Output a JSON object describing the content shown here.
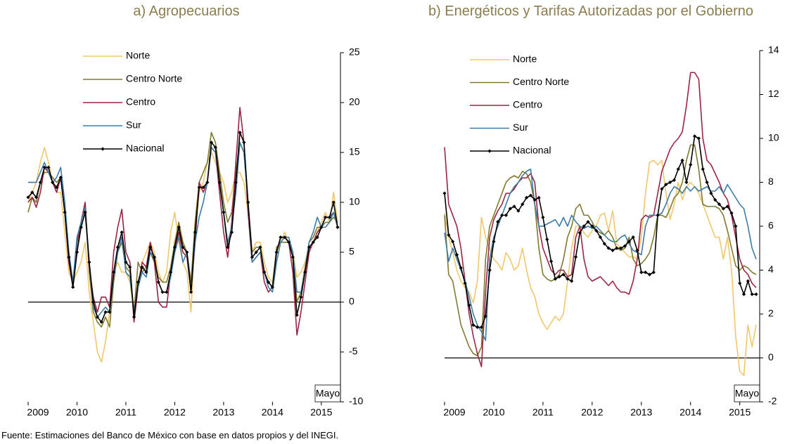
{
  "chart_data": [
    {
      "type": "line",
      "title": "a) Agropecuarios",
      "categories": [
        "2009",
        null,
        null,
        null,
        null,
        null,
        null,
        null,
        null,
        null,
        null,
        null,
        "2010",
        null,
        null,
        null,
        null,
        null,
        null,
        null,
        null,
        null,
        null,
        null,
        "2011",
        null,
        null,
        null,
        null,
        null,
        null,
        null,
        null,
        null,
        null,
        null,
        "2012",
        null,
        null,
        null,
        null,
        null,
        null,
        null,
        null,
        null,
        null,
        null,
        "2013",
        null,
        null,
        null,
        null,
        null,
        null,
        null,
        null,
        null,
        null,
        null,
        "2014",
        null,
        null,
        null,
        null,
        null,
        null,
        null,
        null,
        null,
        null,
        null,
        "2015",
        null,
        null,
        null,
        null
      ],
      "series": [
        {
          "name": "Norte",
          "color": "#f2c76b",
          "values": [
            10,
            11,
            12,
            14,
            15.5,
            14,
            12,
            11,
            11,
            7,
            3,
            2,
            3,
            4,
            6,
            1,
            -2,
            -5,
            -6,
            -4,
            -1,
            3,
            4,
            3,
            3,
            2,
            -1,
            2,
            4,
            5,
            6,
            5,
            3,
            2,
            3,
            7,
            9,
            6,
            4,
            3,
            -1,
            7,
            11,
            12,
            14,
            15,
            14,
            13,
            12,
            10,
            11,
            13,
            13,
            12,
            9,
            5,
            6,
            6,
            4,
            2.5,
            2,
            5,
            6,
            7,
            6,
            5,
            2.5,
            3,
            4,
            5.5,
            6,
            7,
            8,
            9,
            8,
            11,
            8
          ]
        },
        {
          "name": "Centro Norte",
          "color": "#7f7a2e",
          "values": [
            9,
            10.5,
            10,
            12,
            13,
            13,
            12.5,
            12,
            12.5,
            9,
            4,
            1.5,
            5,
            8,
            10,
            3,
            -1,
            -2,
            -2.5,
            -1.5,
            -2.5,
            2,
            5,
            6,
            3.5,
            3,
            -1,
            4,
            3,
            3.5,
            5,
            4,
            2.5,
            2,
            2,
            3.5,
            6,
            8,
            6,
            5,
            2,
            8,
            12,
            13,
            14,
            17,
            16,
            13,
            10,
            8,
            9,
            13,
            16,
            15,
            10,
            5,
            5.5,
            5.5,
            3,
            2,
            1.5,
            5.5,
            6,
            6,
            6,
            5,
            0,
            1,
            3.5,
            6,
            6.5,
            7.5,
            7.5,
            8,
            8,
            8.5,
            8
          ]
        },
        {
          "name": "Centro",
          "color": "#9b2343",
          "values": [
            10,
            10.5,
            9.5,
            11,
            13.5,
            13,
            12,
            11,
            12.5,
            9,
            4,
            1.5,
            6,
            8,
            10,
            3.5,
            0.5,
            -1,
            0.5,
            0.5,
            -0.5,
            5,
            7.5,
            9.3,
            5,
            4,
            -2,
            1.5,
            4,
            3.5,
            6,
            4,
            0,
            -0.5,
            -0.5,
            3,
            5,
            7,
            5,
            4.5,
            1,
            6,
            12,
            11,
            12,
            15.5,
            15,
            11,
            7,
            4.5,
            8,
            14,
            19.5,
            16,
            9,
            4,
            4.5,
            5,
            2,
            1,
            1.5,
            5,
            6.5,
            6.5,
            6,
            3,
            -3.3,
            -1,
            2,
            5,
            6,
            7,
            7.5,
            8.5,
            8.5,
            9,
            7.5
          ]
        },
        {
          "name": "Sur",
          "color": "#3b7ca6",
          "values": [
            12,
            12,
            12,
            13,
            14,
            13,
            12,
            12.5,
            13.5,
            10,
            5,
            2,
            6.5,
            8,
            9.5,
            4,
            -0.5,
            -1.5,
            -1,
            -0.5,
            -1,
            2.5,
            5,
            6.5,
            3,
            2.5,
            -1,
            1.5,
            3,
            2.5,
            5,
            4.5,
            2,
            1,
            1,
            2.5,
            5,
            6.5,
            4,
            5,
            1,
            6,
            8.5,
            10,
            12,
            15.5,
            15,
            12,
            9,
            6,
            7.5,
            11,
            16,
            15,
            10,
            4,
            4.5,
            5,
            3,
            1.5,
            1,
            4,
            6,
            6.5,
            6.5,
            5,
            1,
            1,
            3,
            6,
            7,
            8.5,
            7.5,
            7.5,
            8,
            9,
            7.5
          ]
        },
        {
          "name": "Nacional",
          "color": "#000000",
          "marker": "diamond",
          "values": [
            10.5,
            11,
            10.5,
            12,
            13.5,
            13.5,
            12,
            11.5,
            12.5,
            9,
            4.5,
            1.5,
            5,
            7.5,
            9,
            4,
            0,
            -1.5,
            -2,
            -1,
            -1,
            3,
            5.5,
            7,
            4,
            3.5,
            -1.5,
            2,
            3.5,
            3,
            5.5,
            4.5,
            2,
            1,
            1,
            3,
            5.5,
            7.5,
            5.5,
            5,
            1,
            7,
            11.5,
            11.5,
            12,
            16,
            15.5,
            12,
            9,
            5.5,
            7,
            12,
            17,
            16,
            10,
            4.5,
            5,
            5.5,
            3,
            2,
            1.5,
            5,
            6.5,
            6.5,
            6,
            4.5,
            -1.3,
            0.5,
            3,
            5.5,
            6,
            6.5,
            7.5,
            8.5,
            8.5,
            10,
            7.5
          ]
        }
      ],
      "ylim": [
        -10,
        25
      ],
      "yticks": [
        -10,
        -5,
        0,
        5,
        10,
        15,
        20,
        25
      ],
      "legend": "upper left",
      "annotation": "Mayo"
    },
    {
      "type": "line",
      "title": "b) Energéticos y Tarifas Autorizadas por el Gobierno",
      "categories": [
        "2009",
        null,
        null,
        null,
        null,
        null,
        null,
        null,
        null,
        null,
        null,
        null,
        "2010",
        null,
        null,
        null,
        null,
        null,
        null,
        null,
        null,
        null,
        null,
        null,
        "2011",
        null,
        null,
        null,
        null,
        null,
        null,
        null,
        null,
        null,
        null,
        null,
        "2012",
        null,
        null,
        null,
        null,
        null,
        null,
        null,
        null,
        null,
        null,
        null,
        "2013",
        null,
        null,
        null,
        null,
        null,
        null,
        null,
        null,
        null,
        null,
        null,
        "2014",
        null,
        null,
        null,
        null,
        null,
        null,
        null,
        null,
        null,
        null,
        null,
        "2015",
        null,
        null,
        null,
        null
      ],
      "series": [
        {
          "name": "Norte",
          "color": "#f2c76b",
          "values": [
            6.6,
            5.5,
            4.8,
            4.0,
            3.5,
            3.2,
            3.0,
            2.5,
            3.5,
            6.4,
            5.5,
            5.0,
            4.5,
            4.3,
            4.0,
            4.8,
            4.5,
            4.0,
            4.2,
            5.0,
            4.0,
            3.2,
            2.8,
            2.0,
            1.6,
            1.3,
            1.6,
            1.9,
            1.7,
            2.0,
            3.5,
            5.0,
            6.0,
            6.0,
            5.7,
            5.5,
            5.8,
            6.0,
            6.5,
            6.6,
            5.8,
            6.7,
            5.2,
            5.0,
            4.8,
            4.6,
            4.6,
            4.5,
            5.5,
            7.5,
            8.9,
            9.0,
            8.8,
            9.0,
            7.5,
            6.3,
            7.0,
            8.0,
            7.2,
            7.8,
            8.0,
            7.8,
            7.5,
            7.0,
            6.5,
            6.0,
            5.5,
            5.5,
            4.5,
            5.5,
            4.0,
            1.0,
            -0.6,
            -0.8,
            1.5,
            0.5,
            1.5
          ]
        },
        {
          "name": "Centro Norte",
          "color": "#7f7a2e",
          "values": [
            6.5,
            3.8,
            3.5,
            2.5,
            1.5,
            1.0,
            0.5,
            0.2,
            0.1,
            0.5,
            4.5,
            6.0,
            6.5,
            7.0,
            7.5,
            8.0,
            8.2,
            8.3,
            8.2,
            8.5,
            8.4,
            8.0,
            7.0,
            5.0,
            3.8,
            3.6,
            3.5,
            3.6,
            3.8,
            4.5,
            5.5,
            6.0,
            6.8,
            7.0,
            6.5,
            6.5,
            6.2,
            5.8,
            5.7,
            5.6,
            5.8,
            5.5,
            5.0,
            4.9,
            5.0,
            5.5,
            4.5,
            4.2,
            4.3,
            4.5,
            4.8,
            5.5,
            6.5,
            6.5,
            6.4,
            6.8,
            7.3,
            7.5,
            8.0,
            9.0,
            9.7,
            9.7,
            8.6,
            7.0,
            6.9,
            6.9,
            6.9,
            6.8,
            6.5,
            5.8,
            5.0,
            4.2,
            4.0,
            4.2,
            4.1,
            3.9,
            3.8
          ]
        },
        {
          "name": "Centro",
          "color": "#9b2343",
          "values": [
            9.6,
            7.0,
            6.5,
            6.0,
            5.0,
            3.5,
            2.0,
            1.0,
            0.2,
            -0.4,
            3.0,
            5.5,
            6.3,
            6.7,
            7.0,
            7.5,
            7.5,
            7.7,
            8.0,
            8.2,
            8.2,
            8.4,
            8.0,
            6.0,
            5.0,
            4.5,
            4.0,
            3.8,
            4.0,
            4.0,
            3.7,
            3.8,
            5.5,
            6.0,
            4.5,
            3.7,
            3.5,
            3.6,
            3.7,
            3.5,
            3.3,
            3.5,
            3.2,
            3.0,
            3.0,
            2.9,
            3.5,
            4.5,
            6.3,
            6.5,
            6.4,
            6.5,
            7.5,
            8.5,
            9.0,
            9.5,
            9.8,
            10.0,
            10.3,
            11.5,
            13.0,
            13.0,
            12.7,
            10.0,
            9.0,
            8.8,
            8.4,
            8.0,
            7.5,
            7.2,
            6.5,
            5.5,
            4.5,
            4.0,
            3.8,
            3.4,
            3.2
          ]
        },
        {
          "name": "Sur",
          "color": "#3b7ca6",
          "values": [
            5.7,
            4.4,
            5.0,
            4.5,
            4.0,
            3.5,
            2.8,
            2.0,
            1.5,
            1.2,
            0.8,
            4.5,
            5.5,
            6.0,
            6.5,
            7.0,
            7.5,
            7.8,
            8.0,
            8.3,
            8.5,
            8.6,
            7.0,
            6.0,
            6.0,
            6.1,
            6.2,
            6.3,
            6.0,
            6.4,
            6.0,
            6.5,
            6.2,
            6.0,
            5.9,
            6.0,
            5.9,
            6.0,
            5.8,
            5.6,
            5.4,
            5.3,
            5.3,
            5.5,
            5.6,
            5.2,
            4.9,
            4.8,
            4.7,
            6.0,
            6.5,
            6.5,
            6.5,
            6.6,
            7.0,
            7.5,
            7.8,
            7.7,
            7.5,
            7.8,
            7.6,
            7.8,
            7.6,
            7.7,
            7.8,
            7.6,
            7.6,
            7.8,
            7.5,
            7.9,
            7.6,
            7.3,
            7.0,
            6.8,
            6.0,
            5.0,
            4.5
          ]
        },
        {
          "name": "Nacional",
          "color": "#000000",
          "marker": "diamond",
          "values": [
            7.5,
            5.6,
            5.3,
            4.7,
            4.1,
            3.4,
            2.4,
            1.5,
            1.4,
            1.4,
            1.9,
            4.0,
            5.3,
            6.2,
            6.5,
            6.5,
            6.8,
            6.9,
            6.7,
            7.0,
            7.3,
            7.4,
            7.2,
            7.3,
            6.4,
            5.4,
            4.4,
            3.6,
            3.7,
            3.8,
            3.6,
            3.5,
            4.6,
            5.7,
            6.0,
            6.2,
            6.0,
            5.8,
            5.5,
            5.2,
            5.0,
            4.9,
            5.0,
            5.0,
            5.1,
            5.3,
            5.5,
            4.9,
            3.9,
            3.9,
            3.8,
            3.9,
            6.5,
            7.7,
            7.9,
            8.0,
            8.1,
            8.6,
            9.0,
            8.0,
            8.8,
            10.1,
            10.0,
            8.6,
            8.0,
            7.5,
            7.2,
            7.0,
            6.8,
            6.9,
            6.6,
            6.0,
            3.4,
            2.9,
            3.5,
            2.9,
            2.9
          ]
        }
      ],
      "ylim": [
        -2,
        14
      ],
      "yticks": [
        -2,
        0,
        2,
        4,
        6,
        8,
        10,
        12,
        14
      ],
      "legend": "upper left",
      "annotation": "Mayo"
    }
  ],
  "source": "Fuente: Estimaciones del Banco de México con base en datos propios y del INEGI."
}
